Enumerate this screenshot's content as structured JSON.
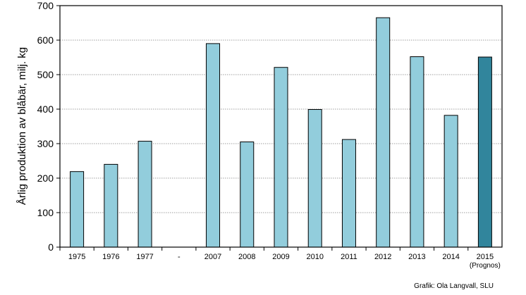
{
  "chart_data": {
    "type": "bar",
    "ylabel": "Årlig produktion av blåbär, milj. kg",
    "xlabel": "",
    "ylim": [
      0,
      700
    ],
    "yticks": [
      0,
      100,
      200,
      300,
      400,
      500,
      600,
      700
    ],
    "grid": "horizontal dotted",
    "categories": [
      "1975",
      "1976",
      "1977",
      "-",
      "2007",
      "2008",
      "2009",
      "2010",
      "2011",
      "2012",
      "2013",
      "2014",
      "2015"
    ],
    "category_sublabels": [
      "",
      "",
      "",
      "",
      "",
      "",
      "",
      "",
      "",
      "",
      "",
      "",
      "(Prognos)"
    ],
    "values": [
      219,
      240,
      307,
      null,
      590,
      305,
      521,
      399,
      312,
      665,
      552,
      382,
      551
    ],
    "colors": {
      "bar": "#92cddc",
      "highlight": "#31859c",
      "outline": "#000000",
      "grid": "#808080"
    },
    "highlight_index": 12,
    "credit": "Grafik: Ola Langvall, SLU"
  }
}
